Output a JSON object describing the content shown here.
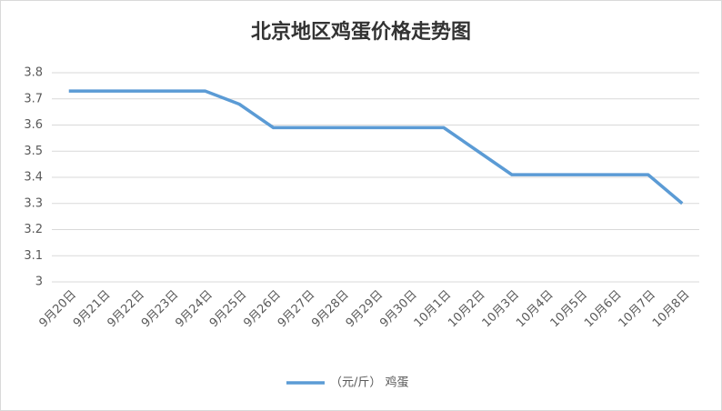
{
  "chart_data": {
    "type": "line",
    "title": "北京地区鸡蛋价格走势图",
    "categories": [
      "9月20日",
      "9月21日",
      "9月22日",
      "9月23日",
      "9月24日",
      "9月25日",
      "9月26日",
      "9月27日",
      "9月28日",
      "9月29日",
      "9月30日",
      "10月1日",
      "10月2日",
      "10月3日",
      "10月4日",
      "10月5日",
      "10月6日",
      "10月7日",
      "10月8日"
    ],
    "series": [
      {
        "name": "（元/斤） 鸡蛋",
        "color": "#5b9bd5",
        "values": [
          3.73,
          3.73,
          3.73,
          3.73,
          3.73,
          3.68,
          3.59,
          3.59,
          3.59,
          3.59,
          3.59,
          3.59,
          3.5,
          3.41,
          3.41,
          3.41,
          3.41,
          3.41,
          3.3
        ]
      }
    ],
    "ylim": [
      3,
      3.8
    ],
    "yticks": [
      3,
      3.1,
      3.2,
      3.3,
      3.4,
      3.5,
      3.6,
      3.7,
      3.8
    ],
    "grid": true,
    "legend": "bottom"
  }
}
